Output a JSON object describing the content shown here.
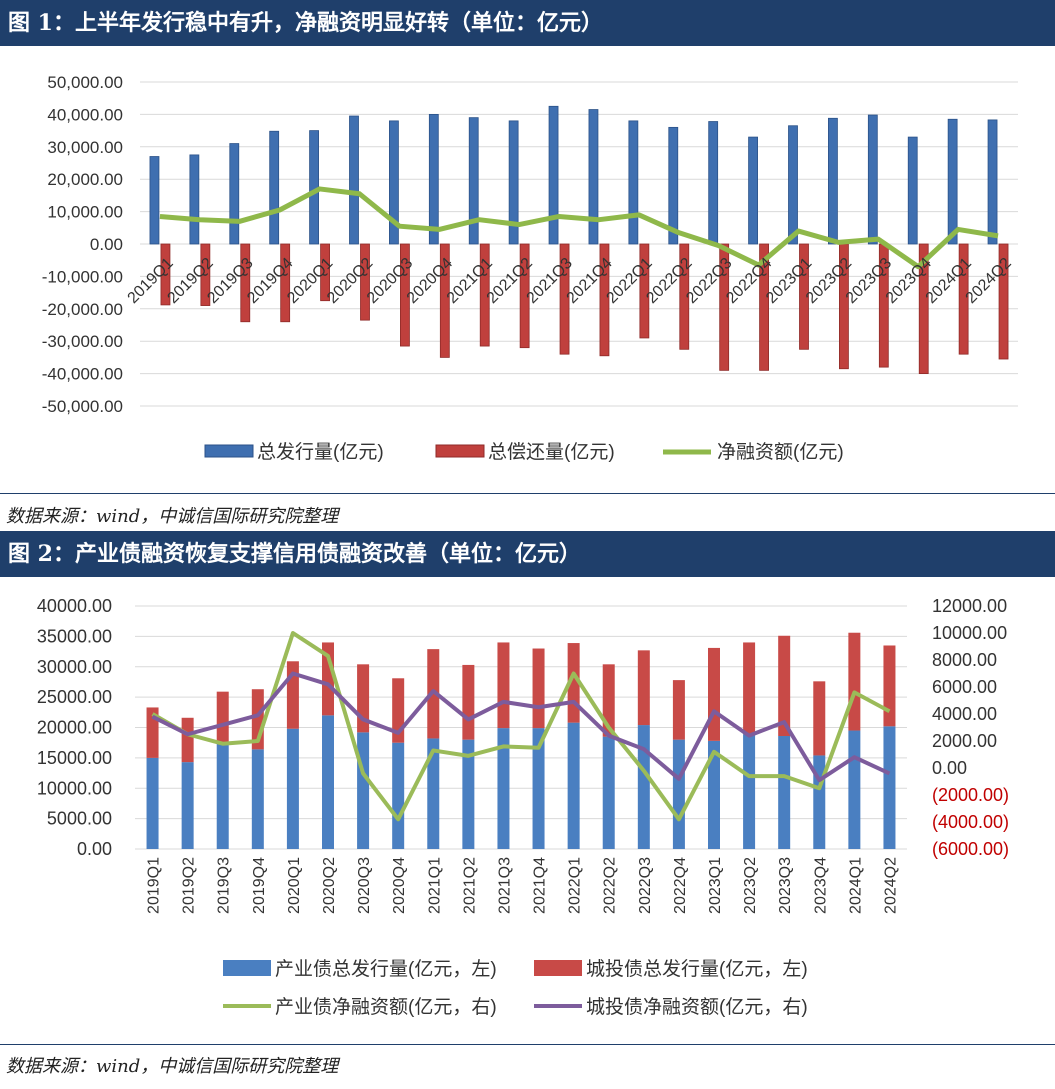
{
  "chart1": {
    "title": "图 1：上半年发行稳中有升，净融资明显好转（单位：亿元）",
    "source": "数据来源：wind，中诚信国际研究院整理",
    "colors": {
      "issuance": "#3f6fb0",
      "repayment": "#c0403d",
      "net": "#8fb84a",
      "accent": "#1f3f6b"
    },
    "chart_data": {
      "type": "bar",
      "categories": [
        "2019Q1",
        "2019Q2",
        "2019Q3",
        "2019Q4",
        "2020Q1",
        "2020Q2",
        "2020Q3",
        "2020Q4",
        "2021Q1",
        "2021Q2",
        "2021Q3",
        "2021Q4",
        "2022Q1",
        "2022Q2",
        "2022Q3",
        "2022Q4",
        "2023Q1",
        "2023Q2",
        "2023Q3",
        "2023Q4",
        "2024Q1",
        "2024Q2"
      ],
      "series": [
        {
          "name": "总发行量(亿元)",
          "type": "bar",
          "values": [
            27000,
            27500,
            31000,
            34800,
            35000,
            39500,
            38000,
            40000,
            39000,
            38000,
            42500,
            41500,
            38000,
            36000,
            37800,
            33000,
            36500,
            38800,
            39800,
            33000,
            38500,
            38300
          ]
        },
        {
          "name": "总偿还量(亿元)",
          "type": "bar",
          "values": [
            -18800,
            -19000,
            -24000,
            -24000,
            -17500,
            -23500,
            -31500,
            -35000,
            -31500,
            -32000,
            -34000,
            -34500,
            -29000,
            -32500,
            -39000,
            -39000,
            -32500,
            -38500,
            -38000,
            -40000,
            -34000,
            -35500
          ]
        },
        {
          "name": "净融资额(亿元)",
          "type": "line",
          "values": [
            8500,
            7500,
            7000,
            10500,
            17000,
            15500,
            5500,
            4500,
            7500,
            6000,
            8500,
            7500,
            9000,
            3500,
            -500,
            -6500,
            4000,
            500,
            1500,
            -7000,
            4500,
            2500
          ]
        }
      ],
      "yticks": [
        "50,000.00",
        "40,000.00",
        "30,000.00",
        "20,000.00",
        "10,000.00",
        "0.00",
        "-10,000.00",
        "-20,000.00",
        "-30,000.00",
        "-40,000.00",
        "-50,000.00"
      ],
      "ylim": [
        -50000,
        50000
      ],
      "legend_position": "bottom",
      "grid": true
    }
  },
  "chart2": {
    "title": "图 2：产业债融资恢复支撑信用债融资改善（单位：亿元）",
    "source": "数据来源：wind，中诚信国际研究院整理",
    "colors": {
      "industrial": "#4a7fc1",
      "lgfv": "#c84a47",
      "industrial_net": "#9bbb59",
      "lgfv_net": "#7d5c9c",
      "negative_tick": "#c00000"
    },
    "chart_data": {
      "type": "bar",
      "stacked": true,
      "categories": [
        "2019Q1",
        "2019Q2",
        "2019Q3",
        "2019Q4",
        "2020Q1",
        "2020Q2",
        "2020Q3",
        "2020Q4",
        "2021Q1",
        "2021Q2",
        "2021Q3",
        "2021Q4",
        "2022Q1",
        "2022Q2",
        "2022Q3",
        "2022Q4",
        "2023Q1",
        "2023Q2",
        "2023Q3",
        "2023Q4",
        "2024Q1",
        "2024Q2"
      ],
      "series": [
        {
          "name": "产业债总发行量(亿元，左)",
          "axis": "left",
          "type": "bar",
          "values": [
            15000,
            14300,
            17500,
            16400,
            19800,
            22000,
            19200,
            17500,
            18200,
            18000,
            19900,
            19900,
            20800,
            18500,
            20400,
            18000,
            17800,
            18900,
            18600,
            15400,
            19500,
            20200
          ]
        },
        {
          "name": "城投债总发行量(亿元，左)",
          "axis": "left",
          "type": "bar",
          "values": [
            8300,
            7300,
            8400,
            9900,
            11100,
            12000,
            11200,
            10600,
            14700,
            12300,
            14100,
            13100,
            13100,
            11900,
            12300,
            9800,
            15300,
            15100,
            16500,
            12200,
            16100,
            13300
          ]
        },
        {
          "name": "产业债净融资额(亿元，右)",
          "axis": "right",
          "type": "line",
          "values": [
            4000,
            2500,
            1800,
            2000,
            10000,
            8300,
            -400,
            -3800,
            1300,
            900,
            1600,
            1500,
            7000,
            3000,
            -200,
            -3800,
            1200,
            -600,
            -600,
            -1500,
            5600,
            4200
          ]
        },
        {
          "name": "城投债净融资额(亿元，右)",
          "axis": "right",
          "type": "line",
          "values": [
            3800,
            2500,
            3200,
            3900,
            7000,
            6200,
            3600,
            2600,
            5700,
            3600,
            4900,
            4500,
            4900,
            2400,
            1400,
            -800,
            4200,
            2400,
            3400,
            -900,
            800,
            -400
          ]
        }
      ],
      "left_ticks": [
        "40000.00",
        "35000.00",
        "30000.00",
        "25000.00",
        "20000.00",
        "15000.00",
        "10000.00",
        "5000.00",
        "0.00"
      ],
      "right_ticks": [
        "12000.00",
        "10000.00",
        "8000.00",
        "6000.00",
        "4000.00",
        "2000.00",
        "0.00",
        "(2000.00)",
        "(4000.00)",
        "(6000.00)"
      ],
      "ylim_left": [
        0,
        40000
      ],
      "ylim_right": [
        -6000,
        12000
      ],
      "legend_position": "bottom",
      "grid": true
    }
  }
}
